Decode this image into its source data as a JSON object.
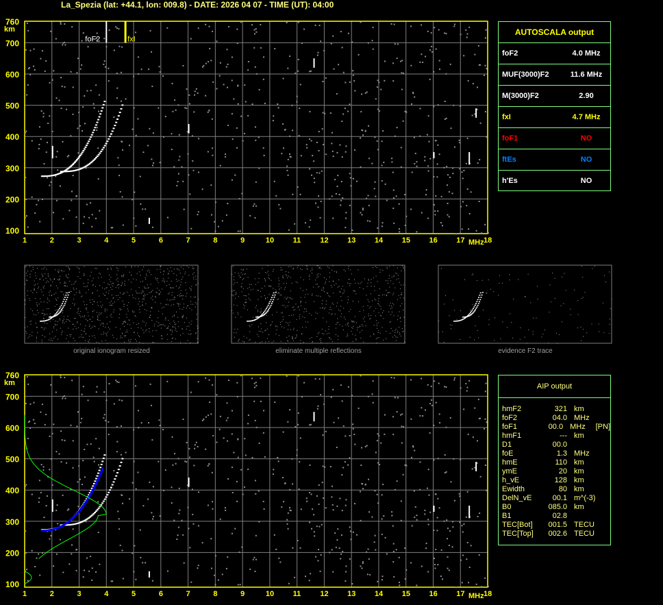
{
  "header": {
    "title": "La_Spezia (lat: +44.1, lon: 009.8) - DATE: 2026 04 07 - TIME (UT): 04:00"
  },
  "axes": {
    "y_unit": "km",
    "x_unit": "MHz",
    "y_ticks": [
      760,
      700,
      600,
      500,
      400,
      300,
      200,
      100
    ],
    "x_ticks": [
      1,
      2,
      3,
      4,
      5,
      6,
      7,
      8,
      9,
      10,
      11,
      12,
      13,
      14,
      15,
      16,
      17,
      18
    ]
  },
  "markers": {
    "foF2_label": "foF2",
    "foF2_freq": 4.0,
    "fxI_label": "fxI",
    "fxI_freq": 4.7
  },
  "colors": {
    "axis": "#ffff00",
    "grid": "#808080",
    "box_border": "#80ff80",
    "trace_blue": "#0000ff",
    "profile_green": "#00ff00"
  },
  "autoscala": {
    "title": "AUTOSCALA output",
    "rows": [
      {
        "label": "foF2",
        "value": "4.0 MHz",
        "color": "#ffffff"
      },
      {
        "label": "MUF(3000)F2",
        "value": "11.6 MHz",
        "color": "#ffffff"
      },
      {
        "label": "M(3000)F2",
        "value": "2.90",
        "color": "#ffffff"
      },
      {
        "label": "fxI",
        "value": "4.7 MHz",
        "color": "#ffff00"
      },
      {
        "label": "foF1",
        "value": "NO",
        "color": "#ff0000"
      },
      {
        "label": "ftEs",
        "value": "NO",
        "color": "#0080ff"
      },
      {
        "label": "h'Es",
        "value": "NO",
        "color": "#ffffff"
      }
    ]
  },
  "thumbnails": [
    {
      "caption": "original ionogram resized"
    },
    {
      "caption": "eliminate multiple reflections"
    },
    {
      "caption": "evidence F2 trace"
    }
  ],
  "aip": {
    "title": "AIP output",
    "rows": [
      {
        "name": "hmF2",
        "value": "321",
        "unit": "km",
        "extra": ""
      },
      {
        "name": "foF2",
        "value": "04.0",
        "unit": "MHz",
        "extra": ""
      },
      {
        "name": "foF1",
        "value": "00.0",
        "unit": "MHz",
        "extra": "[PN]"
      },
      {
        "name": "hmF1",
        "value": "---",
        "unit": "km",
        "extra": ""
      },
      {
        "name": "D1",
        "value": "00.0",
        "unit": "",
        "extra": ""
      },
      {
        "name": "foE",
        "value": "1.3",
        "unit": "MHz",
        "extra": ""
      },
      {
        "name": "hmE",
        "value": "110",
        "unit": "km",
        "extra": ""
      },
      {
        "name": "ymE",
        "value": "20",
        "unit": "km",
        "extra": ""
      },
      {
        "name": "h_vE",
        "value": "128",
        "unit": "km",
        "extra": ""
      },
      {
        "name": "Ewidth",
        "value": "80",
        "unit": "km",
        "extra": ""
      },
      {
        "name": "DelN_vE",
        "value": "00.1",
        "unit": "m^(-3)",
        "extra": ""
      },
      {
        "name": "B0",
        "value": "085.0",
        "unit": "km",
        "extra": ""
      },
      {
        "name": "B1",
        "value": "02.8",
        "unit": "",
        "extra": ""
      },
      {
        "name": "TEC[Bot]",
        "value": "001.5",
        "unit": "TECU",
        "extra": ""
      },
      {
        "name": "TEC[Top]",
        "value": "002.6",
        "unit": "TECU",
        "extra": ""
      }
    ]
  }
}
